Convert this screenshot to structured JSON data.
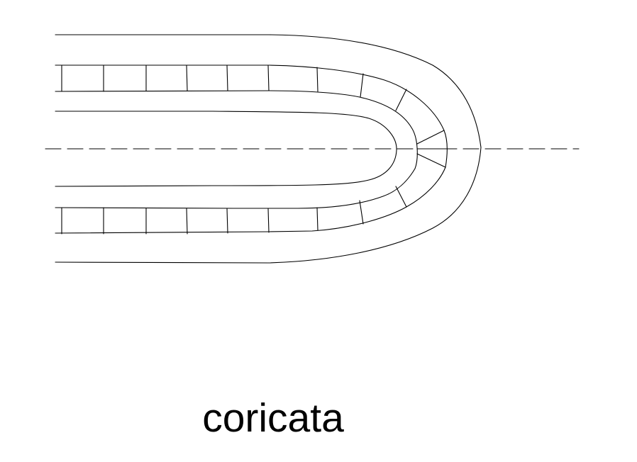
{
  "caption": "coricata",
  "colors": {
    "stroke": "#000000",
    "background": "#ffffff"
  }
}
